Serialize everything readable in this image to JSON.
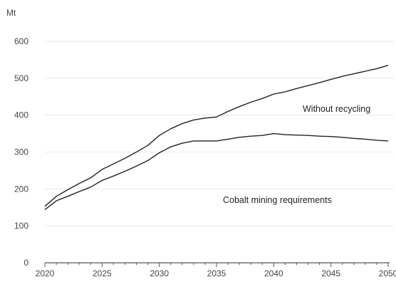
{
  "chart_data": {
    "type": "line",
    "ylabel": "Mt",
    "xlim": [
      2020,
      2050
    ],
    "ylim": [
      0,
      600
    ],
    "x_ticks": [
      2020,
      2025,
      2030,
      2035,
      2040,
      2045,
      2050
    ],
    "y_ticks": [
      0,
      100,
      200,
      300,
      400,
      500,
      600
    ],
    "grid": "horizontal",
    "line_color": "#222222",
    "x": [
      2020,
      2021,
      2022,
      2023,
      2024,
      2025,
      2026,
      2027,
      2028,
      2029,
      2030,
      2031,
      2032,
      2033,
      2034,
      2035,
      2036,
      2037,
      2038,
      2039,
      2040,
      2041,
      2042,
      2043,
      2044,
      2045,
      2046,
      2047,
      2048,
      2049,
      2050
    ],
    "series": [
      {
        "name": "Without recycling",
        "values": [
          153,
          180,
          198,
          215,
          230,
          253,
          268,
          283,
          300,
          318,
          345,
          363,
          377,
          387,
          392,
          395,
          410,
          423,
          435,
          445,
          457,
          463,
          472,
          480,
          488,
          497,
          505,
          512,
          519,
          526,
          535
        ]
      },
      {
        "name": "Cobalt mining requirements",
        "values": [
          144,
          168,
          180,
          193,
          205,
          223,
          235,
          248,
          262,
          277,
          298,
          314,
          324,
          330,
          330,
          330,
          335,
          340,
          343,
          345,
          350,
          347,
          346,
          345,
          343,
          342,
          340,
          337,
          335,
          332,
          330
        ]
      }
    ]
  }
}
